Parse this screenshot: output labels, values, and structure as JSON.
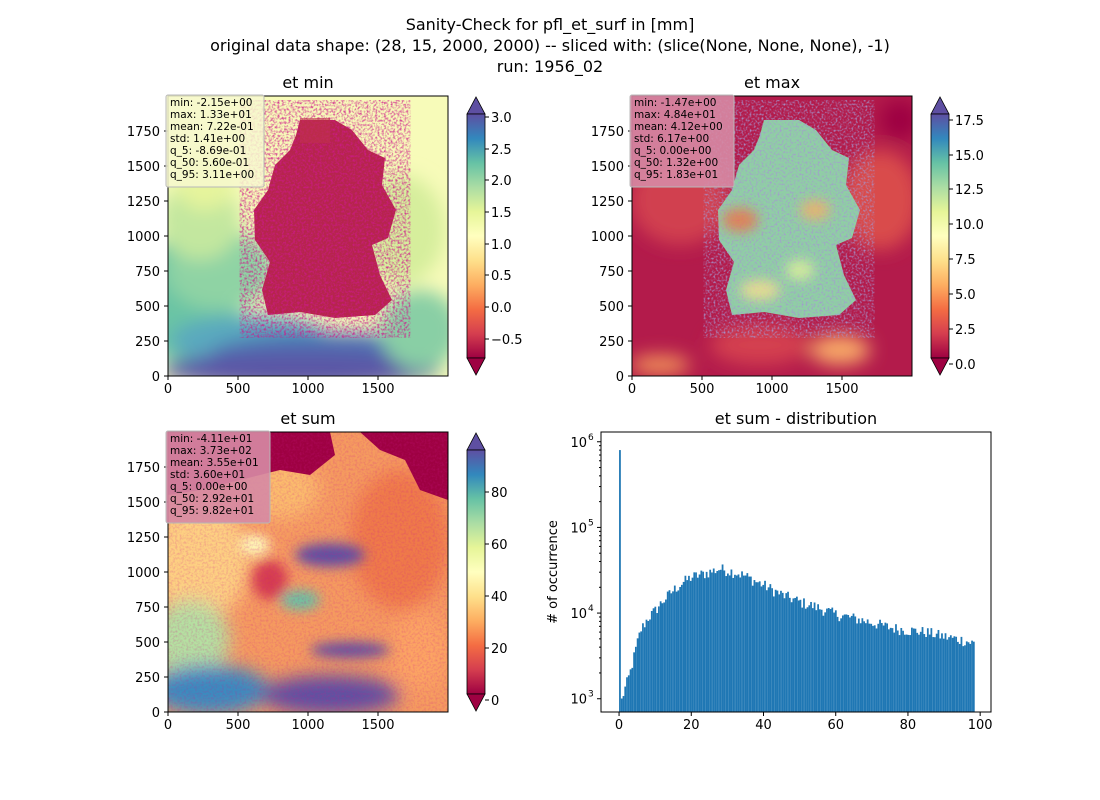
{
  "figure": {
    "suptitle": [
      "Sanity-Check for pfl_et_surf in [mm]",
      "original data shape: (28, 15, 2000, 2000) -- sliced with: (slice(None, None, None), -1)",
      "run: 1956_02"
    ]
  },
  "colormap": {
    "name": "Spectral",
    "stops": [
      "#9e0142",
      "#d53e4f",
      "#f46d43",
      "#fdae61",
      "#fee08b",
      "#ffffbf",
      "#e6f598",
      "#abdda4",
      "#66c2a5",
      "#3288bd",
      "#5e4fa2"
    ]
  },
  "chart_data": [
    {
      "type": "heatmap",
      "id": "et_min",
      "title": "et min",
      "xlim": [
        0,
        2000
      ],
      "ylim": [
        0,
        2000
      ],
      "xticks": [
        "0",
        "500",
        "1000",
        "1500"
      ],
      "yticks": [
        "0",
        "250",
        "500",
        "750",
        "1000",
        "1250",
        "1500",
        "1750"
      ],
      "colorbar": {
        "range": [
          -0.95,
          3.2
        ],
        "ticks": [
          "−0.5",
          "0.0",
          "0.5",
          "1.0",
          "1.5",
          "2.0",
          "2.5",
          "3.0"
        ],
        "extend": "both"
      },
      "stats": [
        "min: -2.15e+00",
        "max: 1.33e+01",
        "mean: 7.22e-01",
        "std: 1.41e+00",
        "q_5: -8.69e-01",
        "q_50: 5.60e-01",
        "q_95: 3.11e+00"
      ],
      "stats_bg": "#f7f8cf"
    },
    {
      "type": "heatmap",
      "id": "et_max",
      "title": "et max",
      "xlim": [
        0,
        2000
      ],
      "ylim": [
        0,
        2000
      ],
      "xticks": [
        "0",
        "500",
        "1000",
        "1500"
      ],
      "yticks": [
        "0",
        "250",
        "500",
        "750",
        "1000",
        "1250",
        "1500",
        "1750"
      ],
      "colorbar": {
        "range": [
          0,
          18.3
        ],
        "ticks": [
          "0.0",
          "2.5",
          "5.0",
          "7.5",
          "10.0",
          "12.5",
          "15.0",
          "17.5"
        ],
        "extend": "both"
      },
      "stats": [
        "min: -1.47e+00",
        "max: 4.84e+01",
        "mean: 4.12e+00",
        "std: 6.17e+00",
        "q_5: 0.00e+00",
        "q_50: 1.32e+00",
        "q_95: 1.83e+01"
      ],
      "stats_bg": "#d68aa4"
    },
    {
      "type": "heatmap",
      "id": "et_sum",
      "title": "et sum",
      "xlim": [
        0,
        2000
      ],
      "ylim": [
        0,
        2000
      ],
      "xticks": [
        "0",
        "500",
        "1000",
        "1500"
      ],
      "yticks": [
        "0",
        "250",
        "500",
        "750",
        "1000",
        "1250",
        "1500",
        "1750"
      ],
      "colorbar": {
        "range": [
          -3,
          100
        ],
        "ticks": [
          "0",
          "20",
          "40",
          "60",
          "80"
        ],
        "extend": "both"
      },
      "stats": [
        "min: -4.11e+01",
        "max: 3.73e+02",
        "mean: 3.55e+01",
        "std: 3.60e+01",
        "q_5: 0.00e+00",
        "q_50: 2.92e+01",
        "q_95: 9.82e+01"
      ],
      "stats_bg": "#d68aa4"
    },
    {
      "type": "bar",
      "id": "et_sum_distribution",
      "title": "et sum - distribution",
      "ylabel": "# of occurrence",
      "yscale": "log",
      "xlim": [
        -5,
        103
      ],
      "ylim": [
        700,
        1300000
      ],
      "xticks": [
        0,
        20,
        40,
        60,
        80,
        100
      ],
      "yticks": [
        {
          "v": 1000,
          "exp": "3"
        },
        {
          "v": 10000,
          "exp": "4"
        },
        {
          "v": 100000,
          "exp": "5"
        },
        {
          "v": 1000000,
          "exp": "6"
        }
      ],
      "color": "#1f77b4",
      "bin_width": 0.49,
      "anchors": [
        [
          0,
          800000
        ],
        [
          0.5,
          900
        ],
        [
          1,
          1100
        ],
        [
          2,
          1500
        ],
        [
          3,
          2000
        ],
        [
          4,
          3000
        ],
        [
          5,
          4500
        ],
        [
          6,
          6500
        ],
        [
          8,
          9000
        ],
        [
          10,
          11000
        ],
        [
          12,
          14000
        ],
        [
          15,
          19000
        ],
        [
          18,
          24000
        ],
        [
          20,
          27000
        ],
        [
          25,
          31000
        ],
        [
          28,
          34000
        ],
        [
          32,
          31000
        ],
        [
          35,
          28000
        ],
        [
          38,
          24000
        ],
        [
          40,
          22000
        ],
        [
          45,
          17000
        ],
        [
          50,
          14000
        ],
        [
          55,
          12000
        ],
        [
          60,
          10000
        ],
        [
          65,
          9000
        ],
        [
          70,
          8000
        ],
        [
          75,
          7000
        ],
        [
          80,
          6500
        ],
        [
          85,
          6200
        ],
        [
          90,
          5500
        ],
        [
          95,
          5000
        ],
        [
          98,
          4600
        ]
      ]
    }
  ]
}
